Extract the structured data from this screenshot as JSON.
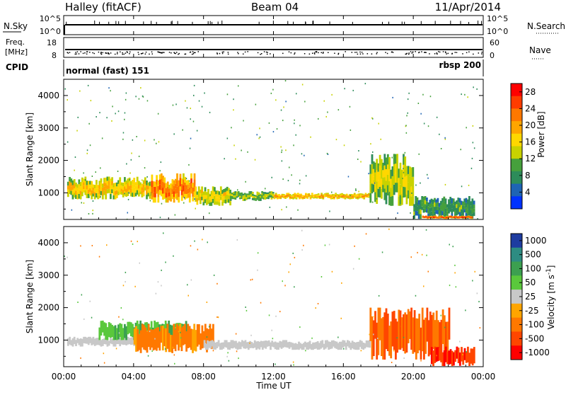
{
  "header": {
    "station": "Halley (fitACF)",
    "beam": "Beam 04",
    "date": "11/Apr/2014"
  },
  "top_panels": {
    "nsky_label": "N.Sky",
    "nsky_ticks": [
      "10^5",
      "10^0"
    ],
    "nsearch_label": "N.Search",
    "freq_label_1": "Freq.",
    "freq_label_2": "[MHz]",
    "freq_ticks": [
      "18",
      "8"
    ],
    "nave_label": "Nave",
    "nave_ticks": [
      "60",
      "0"
    ],
    "cpid_label": "CPID",
    "cpid_mode_1": "normal (fast) 151",
    "cpid_mode_2": "rbsp 200"
  },
  "axes": {
    "ylabel": "Slant Range [km]",
    "xlabel": "Time UT",
    "yticks": [
      "4000",
      "3000",
      "2000",
      "1000"
    ],
    "xticks": [
      "00:00",
      "04:00",
      "08:00",
      "12:00",
      "16:00",
      "20:00",
      "00:00"
    ]
  },
  "power_colorbar": {
    "label": "Power [dB]",
    "ticks": [
      "28",
      "24",
      "20",
      "16",
      "12",
      "8",
      "4"
    ],
    "colors": [
      "#ff0000",
      "#ff3c00",
      "#ff7800",
      "#ffa500",
      "#ffd700",
      "#c8d200",
      "#46a03c",
      "#2d8c5a",
      "#1e64b4",
      "#0032ff"
    ]
  },
  "velocity_colorbar": {
    "label": "Velocity [m s^-1]",
    "ticks": [
      "1000",
      "500",
      "100",
      "50",
      "25",
      "-25",
      "-100",
      "-500",
      "-1000"
    ],
    "colors": [
      "#1e3ca0",
      "#2d8c82",
      "#3ca050",
      "#5ac83c",
      "#c8c8c8",
      "#ffa500",
      "#ff7800",
      "#ff4600",
      "#ff0000"
    ]
  },
  "chart_data": [
    {
      "type": "heatmap",
      "name": "Power [dB]",
      "x": [
        "00:00",
        "04:00",
        "08:00",
        "12:00",
        "16:00",
        "20:00",
        "00:00"
      ],
      "y_range_km": [
        180,
        4500
      ],
      "x_range_hours": [
        0,
        24
      ],
      "color_range": [
        0,
        30
      ],
      "bands": [
        {
          "t0": 0.2,
          "t1": 5.0,
          "r0": 800,
          "r1": 1500,
          "value": 20
        },
        {
          "t0": 5.0,
          "t1": 7.5,
          "r0": 700,
          "r1": 1600,
          "value": 26
        },
        {
          "t0": 7.5,
          "t1": 9.5,
          "r0": 600,
          "r1": 1200,
          "value": 18
        },
        {
          "t0": 9.5,
          "t1": 12.0,
          "r0": 750,
          "r1": 1050,
          "value": 14
        },
        {
          "t0": 12.0,
          "t1": 17.5,
          "r0": 800,
          "r1": 1000,
          "value": 22
        },
        {
          "t0": 17.5,
          "t1": 20.0,
          "r0": 600,
          "r1": 2200,
          "value": 16
        },
        {
          "t0": 20.0,
          "t1": 23.5,
          "r0": 200,
          "r1": 900,
          "value": 10
        },
        {
          "t0": 20.5,
          "t1": 23.3,
          "r0": 200,
          "r1": 300,
          "value": 29
        }
      ]
    },
    {
      "type": "heatmap",
      "name": "Velocity [m s^-1]",
      "x": [
        "00:00",
        "04:00",
        "08:00",
        "12:00",
        "16:00",
        "20:00",
        "00:00"
      ],
      "y_range_km": [
        180,
        4500
      ],
      "x_range_hours": [
        0,
        24
      ],
      "bands": [
        {
          "t0": 0.2,
          "t1": 4.0,
          "r0": 800,
          "r1": 1100,
          "value": 0
        },
        {
          "t0": 2.0,
          "t1": 7.0,
          "r0": 1000,
          "r1": 1600,
          "value": 60
        },
        {
          "t0": 4.0,
          "t1": 8.5,
          "r0": 600,
          "r1": 1500,
          "value": -100
        },
        {
          "t0": 8.0,
          "t1": 17.5,
          "r0": 700,
          "r1": 1000,
          "value": 0
        },
        {
          "t0": 17.5,
          "t1": 22.0,
          "r0": 400,
          "r1": 2000,
          "value": -300
        },
        {
          "t0": 21.0,
          "t1": 23.5,
          "r0": 200,
          "r1": 800,
          "value": -700
        }
      ]
    }
  ]
}
